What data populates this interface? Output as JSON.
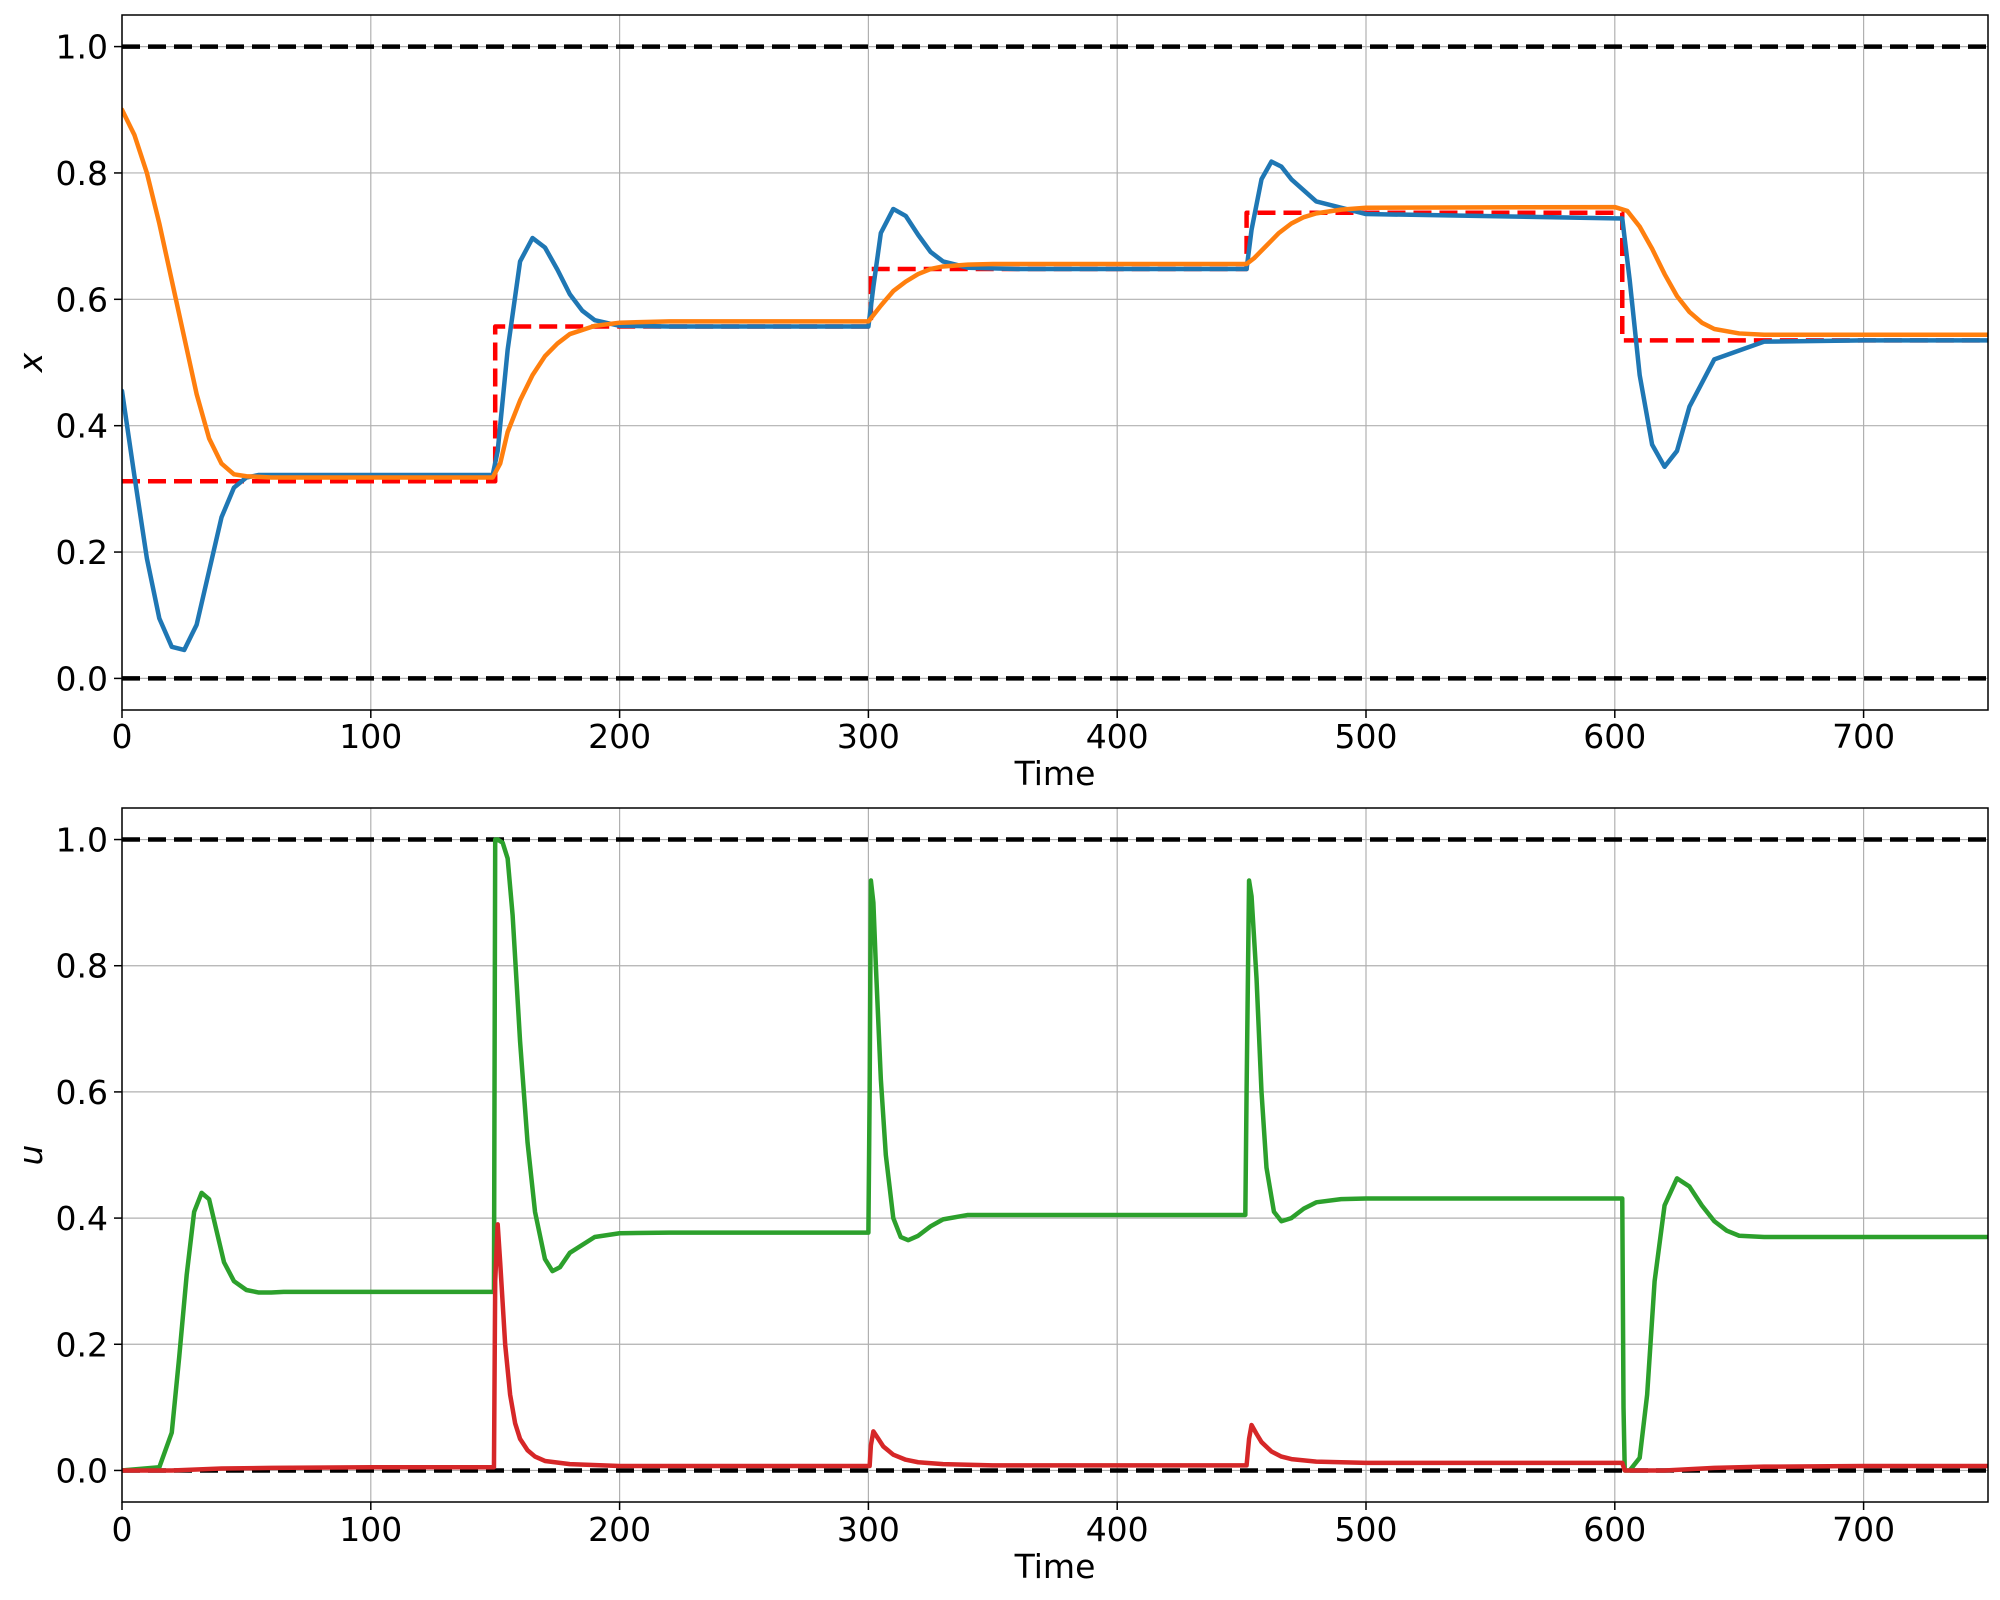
{
  "chart_data": [
    {
      "type": "line",
      "title": "",
      "xlabel": "Time",
      "ylabel": "x",
      "xlim": [
        0,
        750
      ],
      "ylim": [
        -0.05,
        1.05
      ],
      "x_ticks": [
        0,
        100,
        200,
        300,
        400,
        500,
        600,
        700
      ],
      "x_tick_labels": [
        "0",
        "100",
        "200",
        "300",
        "400",
        "500",
        "600",
        "700"
      ],
      "y_ticks": [
        0.0,
        0.2,
        0.4,
        0.6,
        0.8,
        1.0
      ],
      "y_tick_labels": [
        "0.0",
        "0.2",
        "0.4",
        "0.6",
        "0.8",
        "1.0"
      ],
      "grid": true,
      "series": [
        {
          "color": "#000000",
          "style": "dashed",
          "x": [
            0,
            750
          ],
          "y": [
            1.0,
            1.0
          ]
        },
        {
          "color": "#000000",
          "style": "dashed",
          "x": [
            0,
            750
          ],
          "y": [
            0.0,
            0.0
          ]
        },
        {
          "color": "#ff0000",
          "style": "dashed",
          "x": [
            0,
            150,
            150,
            301,
            301,
            452,
            452,
            603,
            603,
            750
          ],
          "y": [
            0.312,
            0.312,
            0.557,
            0.557,
            0.648,
            0.648,
            0.737,
            0.737,
            0.535,
            0.535
          ]
        },
        {
          "color": "#1f77b4",
          "style": "solid",
          "x": [
            0,
            5,
            10,
            15,
            20,
            25,
            30,
            35,
            40,
            45,
            50,
            55,
            60,
            80,
            100,
            149,
            151,
            155,
            160,
            165,
            170,
            175,
            180,
            185,
            190,
            200,
            220,
            300,
            302,
            305,
            310,
            315,
            320,
            325,
            330,
            340,
            360,
            452,
            454,
            458,
            462,
            466,
            470,
            480,
            500,
            603,
            606,
            610,
            615,
            620,
            625,
            630,
            640,
            660,
            700,
            750
          ],
          "y": [
            0.455,
            0.32,
            0.19,
            0.095,
            0.05,
            0.045,
            0.085,
            0.17,
            0.255,
            0.302,
            0.318,
            0.322,
            0.322,
            0.322,
            0.322,
            0.322,
            0.36,
            0.52,
            0.66,
            0.697,
            0.682,
            0.647,
            0.608,
            0.582,
            0.567,
            0.558,
            0.557,
            0.557,
            0.62,
            0.705,
            0.743,
            0.732,
            0.702,
            0.675,
            0.66,
            0.65,
            0.648,
            0.648,
            0.71,
            0.79,
            0.818,
            0.81,
            0.79,
            0.755,
            0.735,
            0.728,
            0.63,
            0.48,
            0.37,
            0.335,
            0.36,
            0.43,
            0.505,
            0.533,
            0.535,
            0.535
          ]
        },
        {
          "color": "#ff7f0e",
          "style": "solid",
          "x": [
            0,
            5,
            10,
            15,
            20,
            25,
            30,
            35,
            40,
            45,
            50,
            55,
            60,
            100,
            149,
            152,
            155,
            160,
            165,
            170,
            175,
            180,
            190,
            200,
            220,
            300,
            302,
            305,
            310,
            315,
            320,
            325,
            330,
            340,
            350,
            452,
            455,
            460,
            465,
            470,
            475,
            480,
            490,
            500,
            600,
            605,
            610,
            615,
            620,
            625,
            630,
            635,
            640,
            650,
            660,
            700,
            750
          ],
          "y": [
            0.9,
            0.86,
            0.8,
            0.72,
            0.63,
            0.54,
            0.45,
            0.38,
            0.34,
            0.323,
            0.32,
            0.319,
            0.318,
            0.318,
            0.318,
            0.34,
            0.39,
            0.44,
            0.48,
            0.51,
            0.53,
            0.545,
            0.558,
            0.563,
            0.565,
            0.565,
            0.575,
            0.59,
            0.613,
            0.628,
            0.64,
            0.648,
            0.652,
            0.655,
            0.656,
            0.656,
            0.665,
            0.685,
            0.705,
            0.72,
            0.73,
            0.736,
            0.742,
            0.745,
            0.746,
            0.74,
            0.715,
            0.68,
            0.64,
            0.605,
            0.58,
            0.563,
            0.553,
            0.546,
            0.544,
            0.544,
            0.544
          ]
        }
      ]
    },
    {
      "type": "line",
      "title": "",
      "xlabel": "Time",
      "ylabel": "u",
      "xlim": [
        0,
        750
      ],
      "ylim": [
        -0.05,
        1.05
      ],
      "x_ticks": [
        0,
        100,
        200,
        300,
        400,
        500,
        600,
        700
      ],
      "x_tick_labels": [
        "0",
        "100",
        "200",
        "300",
        "400",
        "500",
        "600",
        "700"
      ],
      "y_ticks": [
        0.0,
        0.2,
        0.4,
        0.6,
        0.8,
        1.0
      ],
      "y_tick_labels": [
        "0.0",
        "0.2",
        "0.4",
        "0.6",
        "0.8",
        "1.0"
      ],
      "grid": true,
      "series": [
        {
          "color": "#000000",
          "style": "dashed",
          "x": [
            0,
            750
          ],
          "y": [
            1.0,
            1.0
          ]
        },
        {
          "color": "#000000",
          "style": "dashed",
          "x": [
            0,
            750
          ],
          "y": [
            0.0,
            0.0
          ]
        },
        {
          "color": "#2ca02c",
          "style": "solid",
          "x": [
            0,
            15,
            20,
            23,
            26,
            29,
            32,
            35,
            38,
            41,
            45,
            50,
            55,
            60,
            65,
            80,
            149.5,
            150,
            151,
            153,
            155,
            157,
            160,
            163,
            166,
            170,
            173,
            176,
            180,
            190,
            200,
            220,
            300,
            300.5,
            301,
            302,
            303,
            305,
            307,
            310,
            313,
            316,
            320,
            325,
            330,
            340,
            360,
            451.5,
            452,
            453,
            454,
            456,
            458,
            460,
            463,
            466,
            470,
            475,
            480,
            490,
            500,
            603,
            603.5,
            604,
            606,
            610,
            613,
            616,
            620,
            625,
            630,
            635,
            640,
            645,
            650,
            660,
            680,
            750
          ],
          "y": [
            0.0,
            0.005,
            0.06,
            0.18,
            0.31,
            0.41,
            0.44,
            0.43,
            0.38,
            0.33,
            0.3,
            0.286,
            0.282,
            0.282,
            0.283,
            0.283,
            0.283,
            1.0,
            1.0,
            0.995,
            0.97,
            0.88,
            0.68,
            0.52,
            0.41,
            0.335,
            0.316,
            0.322,
            0.345,
            0.37,
            0.376,
            0.377,
            0.377,
            0.6,
            0.935,
            0.9,
            0.8,
            0.62,
            0.5,
            0.4,
            0.37,
            0.365,
            0.372,
            0.387,
            0.398,
            0.405,
            0.405,
            0.405,
            0.6,
            0.935,
            0.91,
            0.78,
            0.6,
            0.48,
            0.41,
            0.395,
            0.4,
            0.415,
            0.425,
            0.43,
            0.431,
            0.431,
            0.1,
            0.0,
            0.0,
            0.02,
            0.12,
            0.3,
            0.42,
            0.463,
            0.45,
            0.42,
            0.395,
            0.38,
            0.372,
            0.37,
            0.37,
            0.37
          ]
        },
        {
          "color": "#d62728",
          "style": "solid",
          "x": [
            0,
            20,
            40,
            60,
            100,
            149.5,
            150,
            151,
            152,
            154,
            156,
            158,
            160,
            163,
            166,
            170,
            180,
            200,
            300.5,
            301,
            302,
            304,
            306,
            310,
            315,
            320,
            330,
            350,
            452,
            453,
            454,
            456,
            458,
            462,
            466,
            470,
            480,
            500,
            603,
            604,
            610,
            620,
            640,
            660,
            700,
            750
          ],
          "y": [
            0.0,
            0.0,
            0.003,
            0.004,
            0.005,
            0.005,
            0.3,
            0.39,
            0.33,
            0.2,
            0.12,
            0.075,
            0.05,
            0.032,
            0.022,
            0.015,
            0.01,
            0.007,
            0.007,
            0.04,
            0.062,
            0.05,
            0.038,
            0.025,
            0.017,
            0.013,
            0.01,
            0.008,
            0.008,
            0.05,
            0.072,
            0.058,
            0.045,
            0.03,
            0.022,
            0.018,
            0.014,
            0.012,
            0.012,
            0.0,
            0.0,
            0.0,
            0.004,
            0.006,
            0.007,
            0.007
          ]
        }
      ]
    }
  ]
}
